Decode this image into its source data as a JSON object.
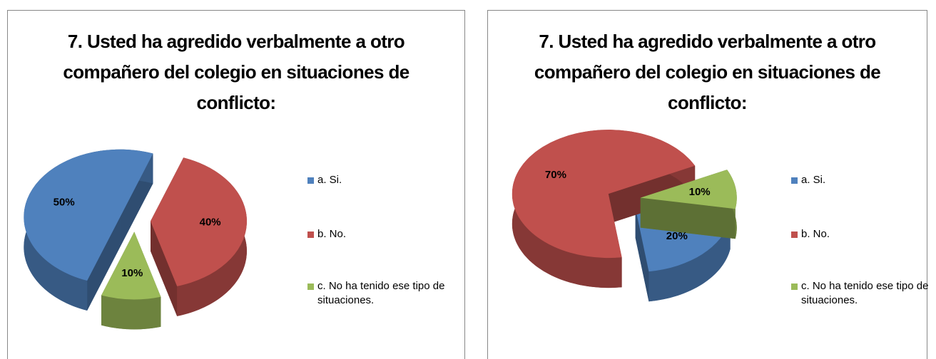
{
  "chart_data": [
    {
      "type": "pie",
      "title": "7. Usted ha agredido verbalmente a otro compañero del colegio en situaciones de conflicto:",
      "categories": [
        "a. Si.",
        "b. No.",
        "c. No ha tenido ese tipo de situaciones."
      ],
      "values": [
        50,
        40,
        10
      ],
      "value_labels": [
        "50%",
        "40%",
        "10%"
      ],
      "colors": [
        "#4f81bd",
        "#c0504d",
        "#9bbb59"
      ],
      "legend": "right"
    },
    {
      "type": "pie",
      "title": "7. Usted ha agredido verbalmente a otro compañero del colegio en situaciones de conflicto:",
      "categories": [
        "a. Si.",
        "b. No.",
        "c. No ha tenido ese tipo de situaciones."
      ],
      "values": [
        20,
        70,
        10
      ],
      "value_labels": [
        "20%",
        "70%",
        "10%"
      ],
      "colors": [
        "#4f81bd",
        "#c0504d",
        "#9bbb59"
      ],
      "legend": "right"
    }
  ]
}
